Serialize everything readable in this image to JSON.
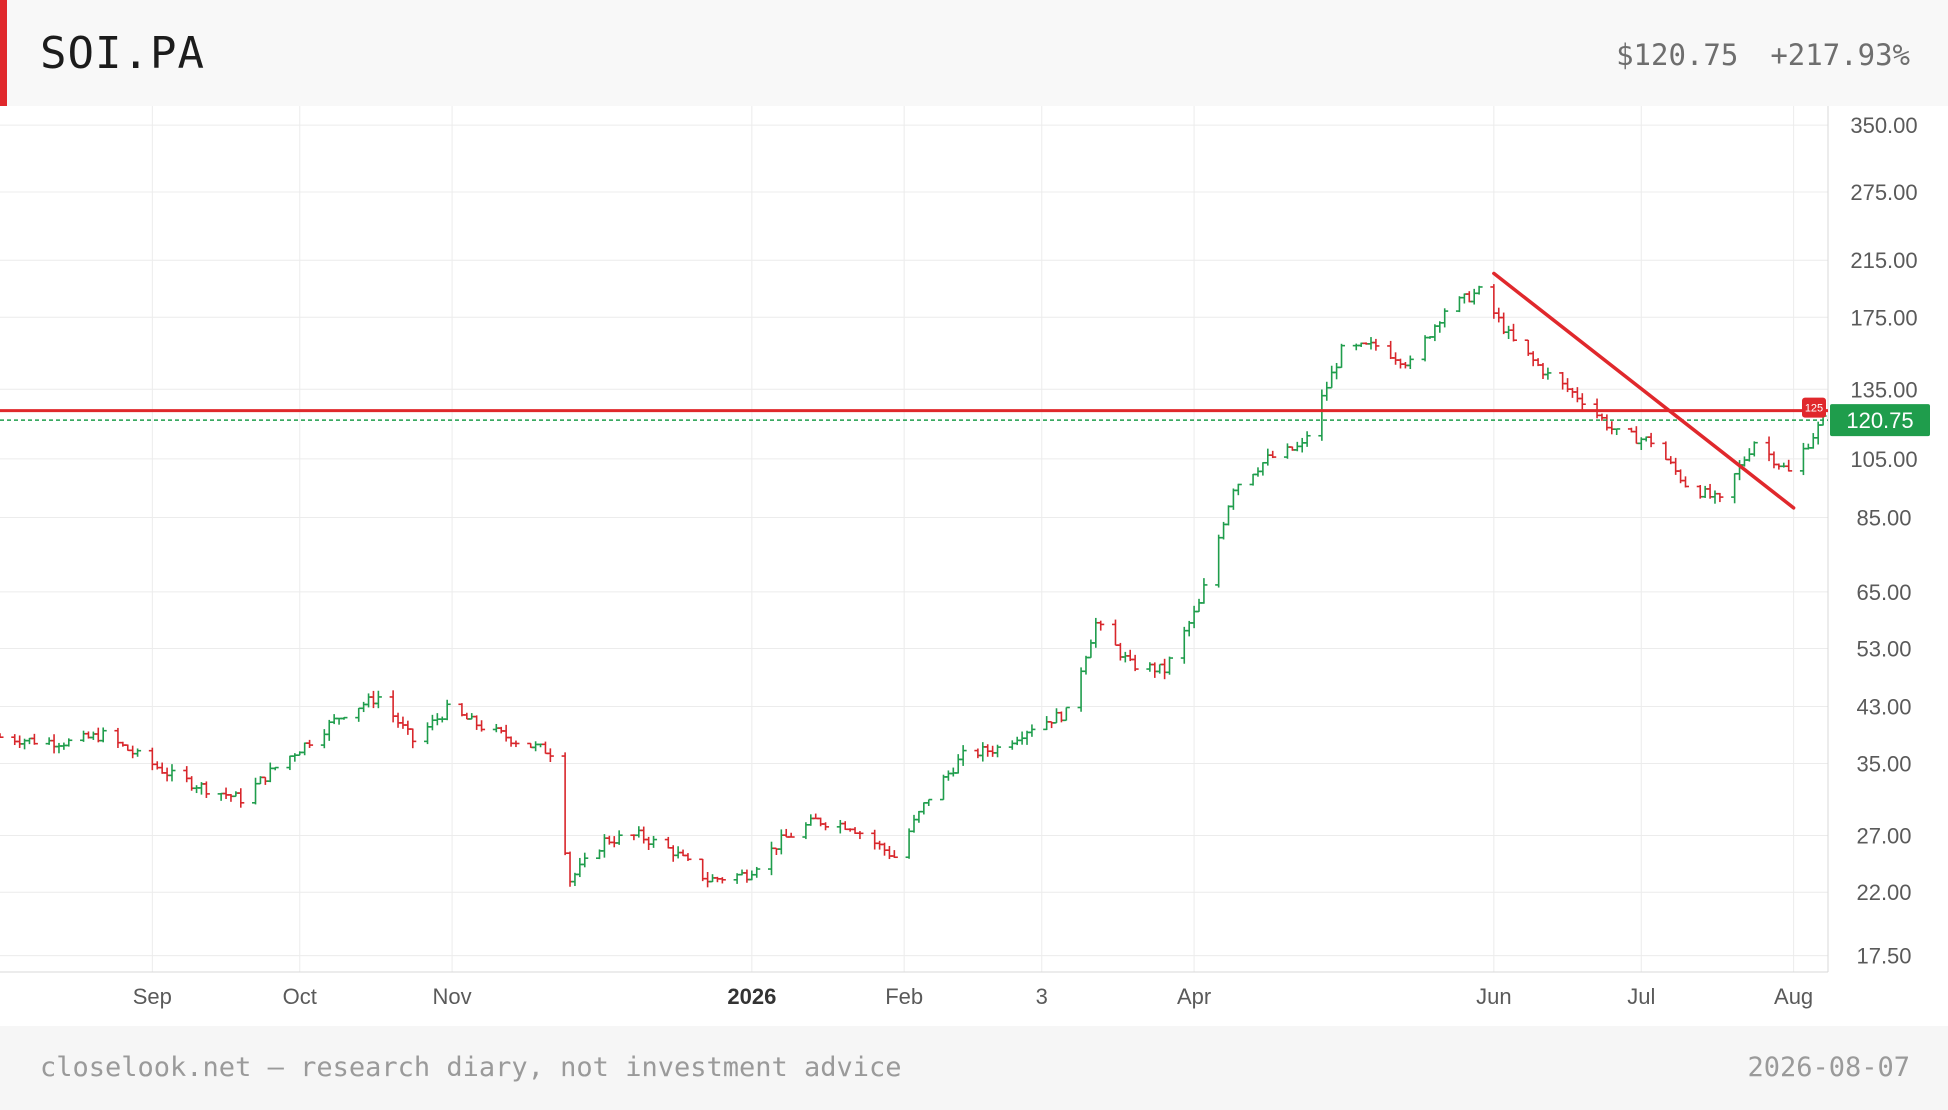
{
  "header": {
    "ticker": "SOI.PA",
    "price": "$120.75",
    "change": "+217.93%"
  },
  "footer": {
    "left": "closelook.net — research diary, not investment advice",
    "right": "2026-08-07"
  },
  "colors": {
    "up": "#1f9d4c",
    "down": "#d8262b",
    "accent": "#e0282c",
    "last_price_badge": "#1f9d4c",
    "grid": "#ececec"
  },
  "chart_data": {
    "type": "ohlc",
    "y_scale": "log",
    "ylim": [
      16.5,
      375
    ],
    "y_ticks": [
      "350.00",
      "275.00",
      "215.00",
      "175.00",
      "135.00",
      "105.00",
      "85.00",
      "65.00",
      "53.00",
      "43.00",
      "35.00",
      "27.00",
      "22.00",
      "17.50"
    ],
    "x_range": [
      "2025-08-01",
      "2026-08-08"
    ],
    "x_ticks": [
      {
        "date": "2025-09-01",
        "label": "Sep",
        "bold": false
      },
      {
        "date": "2025-10-01",
        "label": "Oct",
        "bold": false
      },
      {
        "date": "2025-11-01",
        "label": "Nov",
        "bold": false
      },
      {
        "date": "2026-01-01",
        "label": "2026",
        "bold": true
      },
      {
        "date": "2026-02-01",
        "label": "Feb",
        "bold": false
      },
      {
        "date": "2026-03-01",
        "label": "3",
        "bold": false
      },
      {
        "date": "2026-04-01",
        "label": "Apr",
        "bold": false
      },
      {
        "date": "2026-06-01",
        "label": "Jun",
        "bold": false
      },
      {
        "date": "2026-07-01",
        "label": "Jul",
        "bold": false
      },
      {
        "date": "2026-08-01",
        "label": "Aug",
        "bold": false
      }
    ],
    "last_price": 120.75,
    "last_price_label": "120.75",
    "resistance_level": 125,
    "resistance_label": "125",
    "trendline": {
      "start": {
        "date": "2026-06-01",
        "price": 205
      },
      "end": {
        "date": "2026-08-01",
        "price": 88
      }
    },
    "closes": [
      {
        "date": "2025-08-01",
        "close": 38.5
      },
      {
        "date": "2025-08-08",
        "close": 38.0
      },
      {
        "date": "2025-08-15",
        "close": 37.8
      },
      {
        "date": "2025-08-22",
        "close": 38.8
      },
      {
        "date": "2025-08-29",
        "close": 36.0
      },
      {
        "date": "2025-09-05",
        "close": 33.5
      },
      {
        "date": "2025-09-12",
        "close": 32.0
      },
      {
        "date": "2025-09-19",
        "close": 30.8
      },
      {
        "date": "2025-09-26",
        "close": 34.5
      },
      {
        "date": "2025-10-03",
        "close": 38.0
      },
      {
        "date": "2025-10-10",
        "close": 42.0
      },
      {
        "date": "2025-10-17",
        "close": 44.5
      },
      {
        "date": "2025-10-24",
        "close": 38.0
      },
      {
        "date": "2025-10-31",
        "close": 42.5
      },
      {
        "date": "2025-11-07",
        "close": 40.0
      },
      {
        "date": "2025-11-14",
        "close": 38.0
      },
      {
        "date": "2025-11-21",
        "close": 36.5
      },
      {
        "date": "2025-11-25",
        "close": 23.0
      },
      {
        "date": "2025-12-02",
        "close": 26.5
      },
      {
        "date": "2025-12-09",
        "close": 27.0
      },
      {
        "date": "2025-12-16",
        "close": 25.5
      },
      {
        "date": "2025-12-23",
        "close": 23.0
      },
      {
        "date": "2025-12-31",
        "close": 23.5
      },
      {
        "date": "2026-01-07",
        "close": 26.5
      },
      {
        "date": "2026-01-14",
        "close": 28.5
      },
      {
        "date": "2026-01-21",
        "close": 28.0
      },
      {
        "date": "2026-01-30",
        "close": 25.0
      },
      {
        "date": "2026-02-06",
        "close": 31.0
      },
      {
        "date": "2026-02-13",
        "close": 36.0
      },
      {
        "date": "2026-02-20",
        "close": 37.0
      },
      {
        "date": "2026-02-27",
        "close": 40.0
      },
      {
        "date": "2026-03-06",
        "close": 42.0
      },
      {
        "date": "2026-03-12",
        "close": 58.0
      },
      {
        "date": "2026-03-19",
        "close": 50.0
      },
      {
        "date": "2026-03-26",
        "close": 49.0
      },
      {
        "date": "2026-04-02",
        "close": 62.0
      },
      {
        "date": "2026-04-09",
        "close": 95.0
      },
      {
        "date": "2026-04-16",
        "close": 105.0
      },
      {
        "date": "2026-04-23",
        "close": 110.0
      },
      {
        "date": "2026-05-01",
        "close": 155.0
      },
      {
        "date": "2026-05-08",
        "close": 158.0
      },
      {
        "date": "2026-05-15",
        "close": 148.0
      },
      {
        "date": "2026-05-22",
        "close": 180.0
      },
      {
        "date": "2026-05-29",
        "close": 192.0
      },
      {
        "date": "2026-06-05",
        "close": 160.0
      },
      {
        "date": "2026-06-12",
        "close": 142.0
      },
      {
        "date": "2026-06-19",
        "close": 130.0
      },
      {
        "date": "2026-06-26",
        "close": 115.0
      },
      {
        "date": "2026-07-03",
        "close": 112.0
      },
      {
        "date": "2026-07-10",
        "close": 96.0
      },
      {
        "date": "2026-07-17",
        "close": 90.0
      },
      {
        "date": "2026-07-24",
        "close": 112.0
      },
      {
        "date": "2026-07-31",
        "close": 100.0
      },
      {
        "date": "2026-08-07",
        "close": 120.75
      }
    ]
  }
}
